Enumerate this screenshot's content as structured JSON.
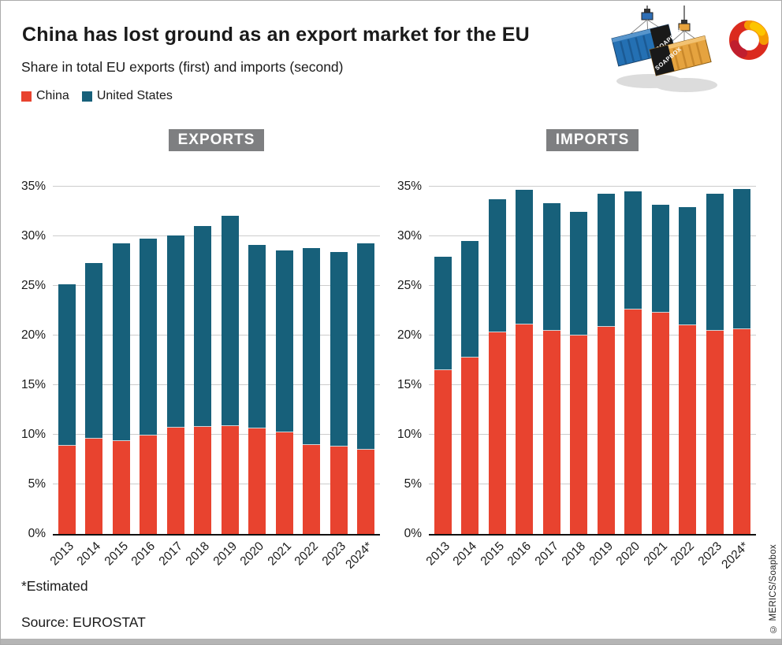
{
  "header": {
    "title": "China has lost ground as an export market for the EU",
    "subtitle": "Share in total EU exports (first) and imports (second)"
  },
  "legend": [
    {
      "label": "China",
      "color": "#e8432f"
    },
    {
      "label": "United States",
      "color": "#17607a"
    }
  ],
  "footer": {
    "footnote": "*Estimated",
    "source": "Source: EUROSTAT",
    "credit": "© MERICS/Soapbox"
  },
  "illustration": {
    "container_label": "SOAPBOX"
  },
  "style": {
    "china_color": "#e8432f",
    "us_color": "#17607a",
    "badge_bg": "#7e7f81",
    "gridline_color": "#cccccc",
    "bottom_bar": "#b5b5b5"
  },
  "chart_data": [
    {
      "type": "bar",
      "stacked": true,
      "title": "EXPORTS",
      "categories": [
        "2013",
        "2014",
        "2015",
        "2016",
        "2017",
        "2018",
        "2019",
        "2020",
        "2021",
        "2022",
        "2023",
        "2024*"
      ],
      "series": [
        {
          "name": "China",
          "color": "#e8432f",
          "values": [
            8.9,
            9.6,
            9.4,
            9.9,
            10.7,
            10.8,
            10.9,
            10.6,
            10.2,
            9.0,
            8.8,
            8.5
          ]
        },
        {
          "name": "United States",
          "color": "#17607a",
          "values": [
            16.3,
            17.7,
            19.9,
            19.9,
            19.4,
            20.2,
            21.2,
            18.5,
            18.4,
            19.8,
            19.6,
            20.8
          ]
        }
      ],
      "totals": [
        25.2,
        27.3,
        29.3,
        29.8,
        30.1,
        31.0,
        32.1,
        29.1,
        28.6,
        28.8,
        28.4,
        29.3
      ],
      "xlabel": "",
      "ylabel": "",
      "ylim": [
        0,
        35
      ],
      "yticks": [
        "0%",
        "5%",
        "10%",
        "15%",
        "20%",
        "25%",
        "30%",
        "35%"
      ],
      "grid": true,
      "legend_position": "top-left"
    },
    {
      "type": "bar",
      "stacked": true,
      "title": "IMPORTS",
      "categories": [
        "2013",
        "2014",
        "2015",
        "2016",
        "2017",
        "2018",
        "2019",
        "2020",
        "2021",
        "2022",
        "2023",
        "2024*"
      ],
      "series": [
        {
          "name": "China",
          "color": "#e8432f",
          "values": [
            16.5,
            17.8,
            20.3,
            21.1,
            20.5,
            20.0,
            20.9,
            22.6,
            22.3,
            21.0,
            20.5,
            20.6
          ]
        },
        {
          "name": "United States",
          "color": "#17607a",
          "values": [
            11.4,
            11.7,
            13.4,
            13.6,
            12.8,
            12.5,
            13.4,
            11.9,
            10.9,
            11.9,
            13.8,
            14.2
          ]
        }
      ],
      "totals": [
        27.9,
        29.5,
        33.7,
        34.7,
        33.3,
        32.5,
        34.3,
        34.5,
        33.2,
        32.9,
        34.3,
        34.8
      ],
      "xlabel": "",
      "ylabel": "",
      "ylim": [
        0,
        35
      ],
      "yticks": [
        "0%",
        "5%",
        "10%",
        "15%",
        "20%",
        "25%",
        "30%",
        "35%"
      ],
      "grid": true,
      "legend_position": "top-left"
    }
  ]
}
